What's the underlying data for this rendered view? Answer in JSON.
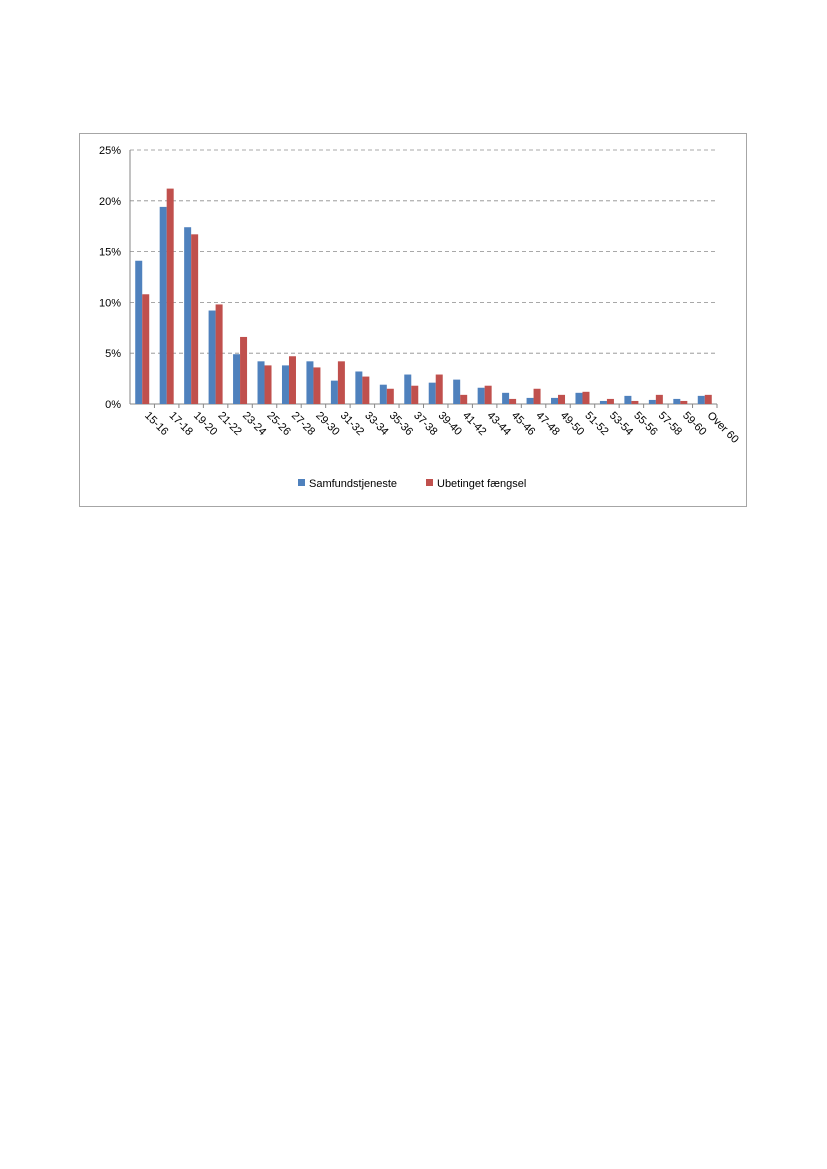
{
  "chart_data": {
    "type": "bar",
    "categories": [
      "15-16",
      "17-18",
      "19-20",
      "21-22",
      "23-24",
      "25-26",
      "27-28",
      "29-30",
      "31-32",
      "33-34",
      "35-36",
      "37-38",
      "39-40",
      "41-42",
      "43-44",
      "45-46",
      "47-48",
      "49-50",
      "51-52",
      "53-54",
      "55-56",
      "57-58",
      "59-60",
      "Over 60"
    ],
    "series": [
      {
        "name": "Samfundstjeneste",
        "color": "#4f81bd",
        "values": [
          14.1,
          19.4,
          17.4,
          9.2,
          4.9,
          4.2,
          3.8,
          4.2,
          2.3,
          3.2,
          1.9,
          2.9,
          2.1,
          2.4,
          1.6,
          1.1,
          0.6,
          0.6,
          1.1,
          0.3,
          0.8,
          0.4,
          0.5,
          0.8
        ]
      },
      {
        "name": "Ubetinget fængsel",
        "color": "#c0504d",
        "values": [
          10.8,
          21.2,
          16.7,
          9.8,
          6.6,
          3.8,
          4.7,
          3.6,
          4.2,
          2.7,
          1.5,
          1.8,
          2.9,
          0.9,
          1.8,
          0.5,
          1.5,
          0.9,
          1.2,
          0.5,
          0.3,
          0.9,
          0.3,
          0.9
        ]
      }
    ],
    "y_ticks": [
      "0%",
      "5%",
      "10%",
      "15%",
      "20%",
      "25%"
    ],
    "ylim": [
      0,
      25
    ],
    "grid": true,
    "legend_position": "bottom"
  }
}
